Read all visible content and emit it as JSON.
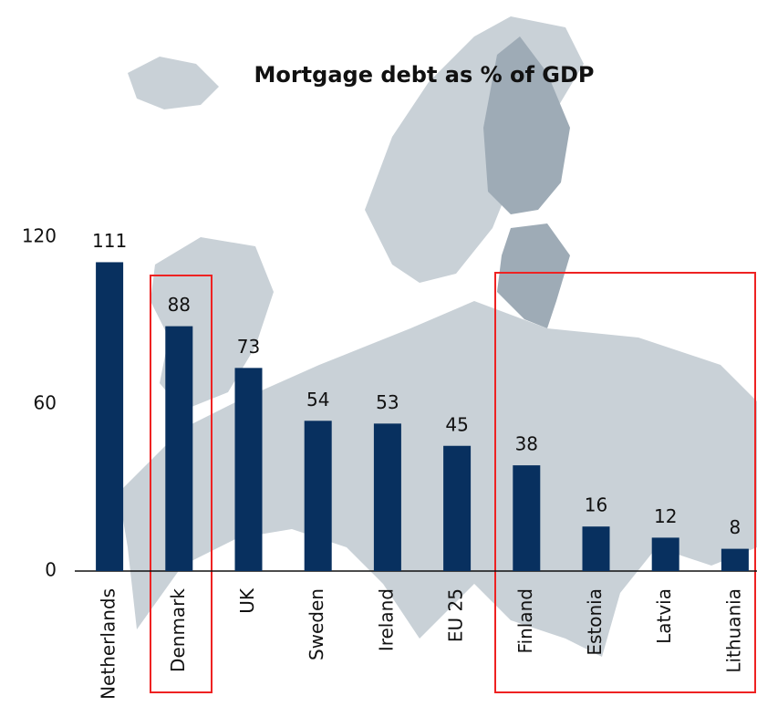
{
  "chart_data": {
    "type": "bar",
    "title": "Mortgage debt as % of GDP",
    "categories": [
      "Netherlands",
      "Denmark",
      "UK",
      "Sweden",
      "Ireland",
      "EU 25",
      "Finland",
      "Estonia",
      "Latvia",
      "Lithuania"
    ],
    "values": [
      111,
      88,
      73,
      54,
      53,
      45,
      38,
      16,
      12,
      8
    ],
    "color": "#08305f",
    "ylim": [
      0,
      120
    ],
    "yticks": [
      0,
      60,
      120
    ],
    "grid": false
  }
}
